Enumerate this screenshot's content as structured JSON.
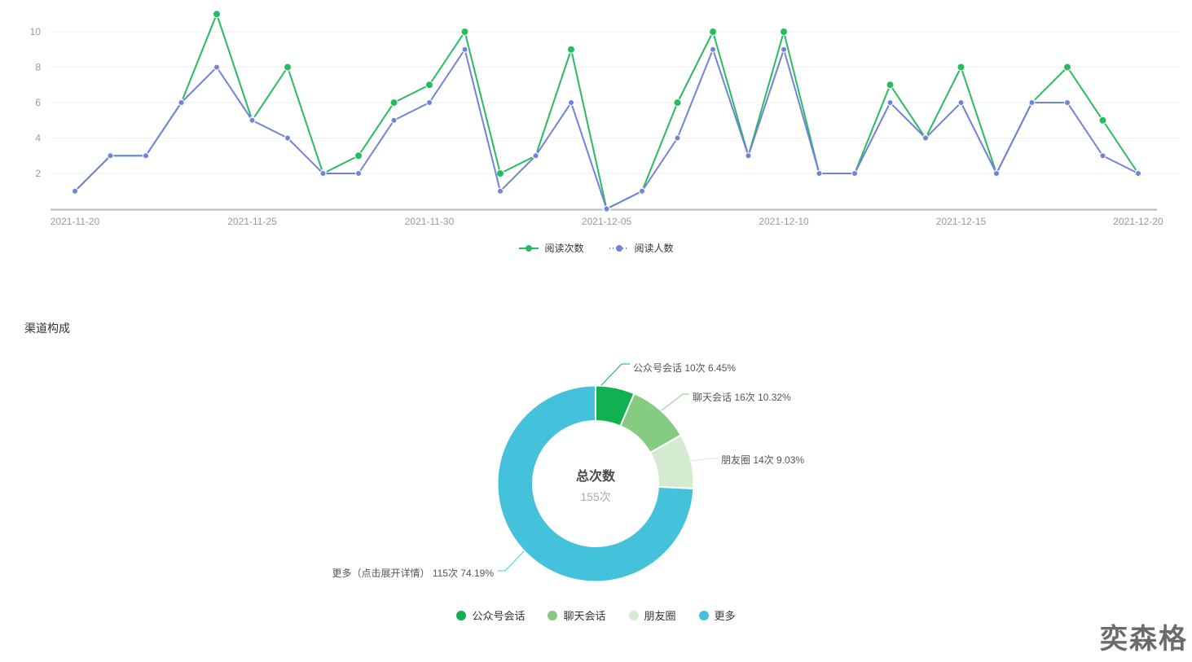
{
  "chart_data": [
    {
      "type": "line",
      "x": [
        "2021-11-20",
        "2021-11-21",
        "2021-11-22",
        "2021-11-23",
        "2021-11-24",
        "2021-11-25",
        "2021-11-26",
        "2021-11-27",
        "2021-11-28",
        "2021-11-29",
        "2021-11-30",
        "2021-12-01",
        "2021-12-02",
        "2021-12-03",
        "2021-12-04",
        "2021-12-05",
        "2021-12-06",
        "2021-12-07",
        "2021-12-08",
        "2021-12-09",
        "2021-12-10",
        "2021-12-11",
        "2021-12-12",
        "2021-12-13",
        "2021-12-14",
        "2021-12-15",
        "2021-12-16",
        "2021-12-17",
        "2021-12-18",
        "2021-12-19",
        "2021-12-20"
      ],
      "x_tick_labels": [
        "2021-11-20",
        "2021-11-25",
        "2021-11-30",
        "2021-12-05",
        "2021-12-10",
        "2021-12-15",
        "2021-12-20"
      ],
      "y_ticks": [
        2,
        4,
        6,
        8,
        10
      ],
      "ylim": [
        0,
        11
      ],
      "grid": true,
      "legend_position": "bottom-center",
      "series": [
        {
          "name": "阅读次数",
          "color": "#29bb61",
          "values": [
            1,
            3,
            3,
            6,
            11,
            5,
            8,
            2,
            3,
            6,
            7,
            10,
            2,
            3,
            9,
            0,
            1,
            6,
            10,
            3,
            10,
            2,
            2,
            7,
            4,
            8,
            2,
            6,
            8,
            5,
            2
          ]
        },
        {
          "name": "阅读人数",
          "color": "#7282d8",
          "values": [
            1,
            3,
            3,
            6,
            8,
            5,
            4,
            2,
            2,
            5,
            6,
            9,
            1,
            3,
            6,
            0,
            1,
            4,
            9,
            3,
            9,
            2,
            2,
            6,
            4,
            6,
            2,
            6,
            6,
            3,
            2
          ]
        }
      ]
    },
    {
      "type": "pie",
      "title": "渠道构成",
      "center_label": "总次数",
      "center_value": "155次",
      "total": 155,
      "legend_position": "bottom-center",
      "slices": [
        {
          "name": "公众号会话",
          "value": 10,
          "pct": 6.45,
          "label": "公众号会话 10次 6.45%",
          "color": "#10b150"
        },
        {
          "name": "聊天会话",
          "value": 16,
          "pct": 10.32,
          "label": "聊天会话 16次 10.32%",
          "color": "#85cb81"
        },
        {
          "name": "朋友圈",
          "value": 14,
          "pct": 9.03,
          "label": "朋友圈 14次 9.03%",
          "color": "#d4ebd1"
        },
        {
          "name": "更多",
          "value": 115,
          "pct": 74.19,
          "label": "更多（点击展开详情） 115次 74.19%",
          "color": "#45c2db"
        }
      ]
    }
  ],
  "watermark": "奕森格"
}
